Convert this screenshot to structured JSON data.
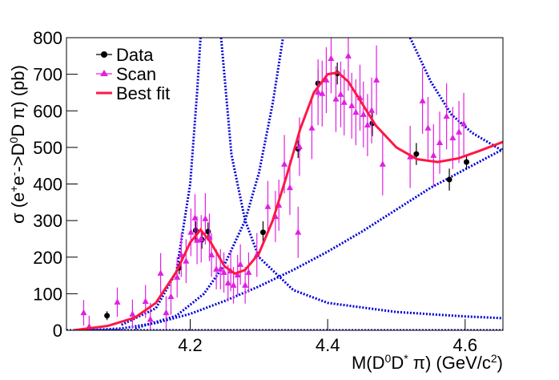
{
  "chart_data": {
    "type": "scatter",
    "y_label": [
      "σ (e",
      "+",
      "e",
      "-",
      "->D",
      "0",
      "D",
      " π) (pb)"
    ],
    "x_label": [
      "M(D",
      "0",
      "D",
      "*",
      " π) (GeV/c",
      "2",
      ")"
    ],
    "xlim": [
      4.02,
      4.655
    ],
    "ylim": [
      0,
      800
    ],
    "xticks": [
      4.2,
      4.4,
      4.6
    ],
    "yticks": [
      0,
      100,
      200,
      300,
      400,
      500,
      600,
      700,
      800
    ],
    "legend": "top-left",
    "series": [
      {
        "name": "Data",
        "color": "#000000",
        "marker": "circle",
        "x": [
          4.079,
          4.184,
          4.208,
          4.217,
          4.226,
          4.306,
          4.357,
          4.386,
          4.414,
          4.465,
          4.529,
          4.577,
          4.602
        ],
        "values": [
          40,
          171,
          273,
          248,
          270,
          268,
          496,
          675,
          702,
          566,
          482,
          412,
          460
        ],
        "errors": [
          12,
          18,
          25,
          25,
          25,
          30,
          25,
          40,
          30,
          35,
          30,
          30,
          20
        ]
      },
      {
        "name": "Scan",
        "color": "#e020e0",
        "marker": "triangle",
        "x": [
          4.045,
          4.053,
          4.094,
          4.116,
          4.135,
          4.142,
          4.157,
          4.165,
          4.172,
          4.181,
          4.187,
          4.194,
          4.201,
          4.207,
          4.21,
          4.216,
          4.222,
          4.228,
          4.231,
          4.238,
          4.244,
          4.249,
          4.255,
          4.259,
          4.263,
          4.269,
          4.273,
          4.28,
          4.285,
          4.297,
          4.313,
          4.324,
          4.329,
          4.337,
          4.345,
          4.357,
          4.359,
          4.377,
          4.386,
          4.392,
          4.398,
          4.405,
          4.412,
          4.419,
          4.424,
          4.43,
          4.435,
          4.441,
          4.447,
          4.452,
          4.458,
          4.464,
          4.471,
          4.48,
          4.52,
          4.538,
          4.546,
          4.554,
          4.563,
          4.573,
          4.582,
          4.591,
          4.598
        ],
        "values": [
          48,
          10,
          77,
          44,
          79,
          30,
          156,
          48,
          92,
          145,
          206,
          189,
          268,
          307,
          246,
          250,
          305,
          254,
          206,
          167,
          167,
          158,
          129,
          162,
          123,
          151,
          180,
          123,
          158,
          206,
          338,
          311,
          342,
          454,
          390,
          268,
          502,
          553,
          651,
          647,
          684,
          743,
          632,
          645,
          623,
          750,
          614,
          596,
          636,
          590,
          561,
          601,
          684,
          454,
          474,
          627,
          553,
          478,
          513,
          585,
          526,
          542,
          564
        ],
        "errors": [
          35,
          30,
          40,
          40,
          45,
          45,
          55,
          45,
          50,
          55,
          60,
          60,
          65,
          65,
          65,
          65,
          70,
          65,
          60,
          55,
          55,
          55,
          50,
          55,
          50,
          55,
          55,
          50,
          55,
          60,
          70,
          70,
          70,
          80,
          75,
          70,
          80,
          85,
          90,
          90,
          90,
          95,
          90,
          90,
          90,
          95,
          90,
          90,
          90,
          90,
          85,
          90,
          95,
          85,
          85,
          90,
          85,
          85,
          85,
          90,
          85,
          85,
          85
        ]
      },
      {
        "name": "Best fit",
        "color": "#ff1744",
        "marker": "line",
        "x": [
          4.03,
          4.08,
          4.12,
          4.15,
          4.18,
          4.2,
          4.215,
          4.23,
          4.25,
          4.265,
          4.28,
          4.3,
          4.32,
          4.34,
          4.36,
          4.38,
          4.4,
          4.415,
          4.43,
          4.45,
          4.47,
          4.5,
          4.53,
          4.56,
          4.59,
          4.62,
          4.655
        ],
        "values": [
          0,
          12,
          35,
          75,
          160,
          240,
          275,
          240,
          175,
          155,
          165,
          210,
          300,
          420,
          550,
          650,
          700,
          705,
          680,
          620,
          560,
          500,
          468,
          460,
          470,
          490,
          515
        ]
      }
    ],
    "components": [
      {
        "color": "#0000dd",
        "x": [
          4.1,
          4.15,
          4.18,
          4.2,
          4.21,
          4.215,
          4.23,
          4.245,
          4.26,
          4.28,
          4.3,
          4.35,
          4.4,
          4.5,
          4.6,
          4.655
        ],
        "values": [
          15,
          60,
          160,
          400,
          650,
          800,
          null,
          800,
          480,
          300,
          200,
          110,
          75,
          50,
          38,
          33
        ]
      },
      {
        "color": "#0000dd",
        "x": [
          4.12,
          4.18,
          4.22,
          4.25,
          4.28,
          4.3,
          4.32,
          4.335
        ],
        "values": [
          5,
          40,
          100,
          180,
          300,
          430,
          620,
          800
        ]
      },
      {
        "color": "#0000dd",
        "x": [
          4.52,
          4.55,
          4.58,
          4.61,
          4.655
        ],
        "values": [
          800,
          680,
          590,
          540,
          490
        ]
      },
      {
        "color": "#0000dd",
        "x": [
          4.05,
          4.1,
          4.15,
          4.2,
          4.25,
          4.3,
          4.35,
          4.4,
          4.45,
          4.5,
          4.55,
          4.6,
          4.655
        ],
        "values": [
          0,
          5,
          20,
          45,
          80,
          120,
          165,
          215,
          270,
          330,
          390,
          440,
          495
        ]
      },
      {
        "color": "#0000dd",
        "x": [
          4.02,
          4.655
        ],
        "values": [
          0,
          0
        ]
      }
    ]
  }
}
